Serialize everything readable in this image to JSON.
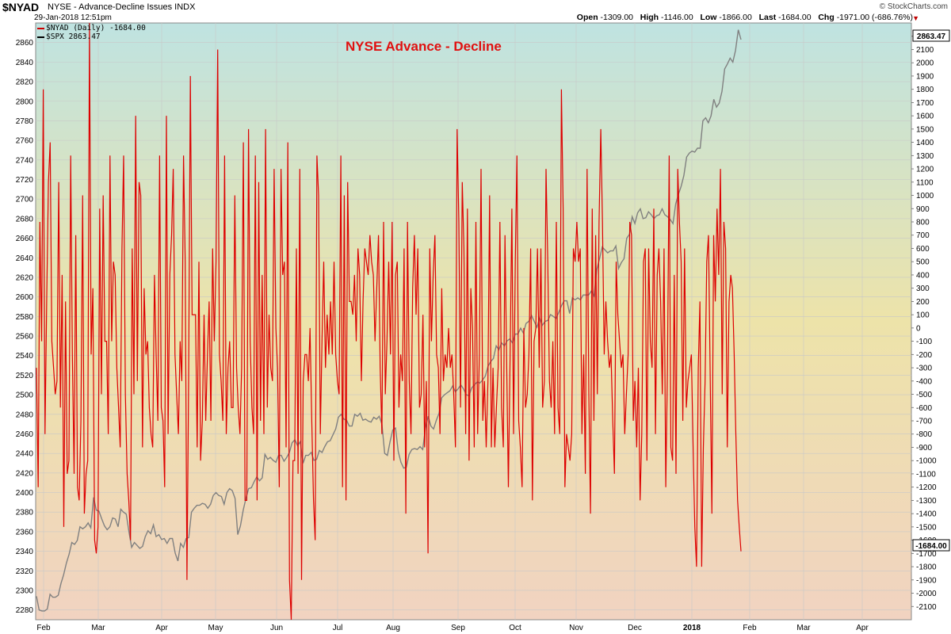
{
  "header": {
    "symbol": "$NYAD",
    "description": "NYSE - Advance-Decline Issues  INDX",
    "datetime": "29-Jan-2018 12:51pm",
    "brand": "© StockCharts.com",
    "open_label": "Open",
    "open_value": "-1309.00",
    "high_label": "High",
    "high_value": "-1146.00",
    "low_label": "Low",
    "low_value": "-1866.00",
    "last_label": "Last",
    "last_value": "-1684.00",
    "chg_label": "Chg",
    "chg_value": "-1971.00 (-686.76%)"
  },
  "legend": [
    {
      "text": "$NYAD (Daily) -1684.00",
      "color": "#cc0000"
    },
    {
      "text": "$SPX 2863.47",
      "color": "#000000"
    }
  ],
  "chart_data": {
    "type": "line",
    "title": "NYSE Advance - Decline",
    "x_tick_labels": [
      "Feb",
      "Mar",
      "Apr",
      "May",
      "Jun",
      "Jul",
      "Aug",
      "Sep",
      "Oct",
      "Nov",
      "Dec",
      "2018",
      "Feb",
      "Mar",
      "Apr"
    ],
    "left_axis": {
      "ylim": [
        2270,
        2880
      ],
      "ticks": [
        2280,
        2300,
        2320,
        2340,
        2360,
        2380,
        2400,
        2420,
        2440,
        2460,
        2480,
        2500,
        2520,
        2540,
        2560,
        2580,
        2600,
        2620,
        2640,
        2660,
        2680,
        2700,
        2720,
        2740,
        2760,
        2780,
        2800,
        2820,
        2840,
        2860
      ]
    },
    "right_axis": {
      "ylim": [
        -2200,
        2300
      ],
      "ticks": [
        -2100,
        -2000,
        -1900,
        -1800,
        -1700,
        -1600,
        -1500,
        -1400,
        -1300,
        -1200,
        -1100,
        -1000,
        -900,
        -800,
        -700,
        -600,
        -500,
        -400,
        -300,
        -200,
        -100,
        0,
        100,
        200,
        300,
        400,
        500,
        600,
        700,
        800,
        900,
        1000,
        1100,
        1200,
        1300,
        1400,
        1500,
        1600,
        1700,
        1800,
        1900,
        2000,
        2100,
        2200
      ]
    },
    "markers": {
      "spx_last": "2863.47",
      "nyad_last": "-1684.00"
    },
    "grid": true,
    "series": [
      {
        "name": "$NYAD (Daily)",
        "axis": "right",
        "color": "#dd0000",
        "values": [
          -300,
          -1200,
          800,
          -100,
          1800,
          -800,
          200,
          1100,
          1400,
          -100,
          -300,
          -500,
          -400,
          1100,
          -600,
          400,
          -1500,
          200,
          -1100,
          -1000,
          1300,
          -200,
          -1100,
          700,
          -1200,
          -1300,
          -700,
          1000,
          -1400,
          -1100,
          -1000,
          2300,
          -200,
          300,
          -1600,
          -1700,
          -1500,
          900,
          -500,
          1000,
          -100,
          -100,
          -800,
          1300,
          -100,
          500,
          400,
          -300,
          -600,
          -900,
          600,
          1300,
          -500,
          -1100,
          -1300,
          -1600,
          600,
          -500,
          1600,
          -400,
          1100,
          1000,
          -900,
          300,
          -200,
          -100,
          -600,
          -800,
          -900,
          400,
          -200,
          -700,
          1300,
          -600,
          -700,
          -1200,
          1600,
          -800,
          400,
          700,
          1200,
          -200,
          -500,
          -800,
          -100,
          -400,
          1300,
          500,
          -1900,
          -400,
          1900,
          100,
          100,
          100,
          -900,
          500,
          -1000,
          -700,
          100,
          -700,
          -200,
          200,
          -700,
          600,
          -100,
          500,
          2100,
          -200,
          -400,
          -700,
          1300,
          -800,
          -300,
          -100,
          -600,
          -600,
          1000,
          -300,
          -600,
          -800,
          -300,
          1400,
          -1300,
          -1300,
          1500,
          -100,
          -600,
          -800,
          1300,
          -1300,
          1100,
          -700,
          400,
          -800,
          1500,
          -600,
          100,
          -300,
          -400,
          1200,
          0,
          -300,
          -1200,
          1200,
          400,
          500,
          -900,
          1400,
          -1900,
          -2200,
          -1000,
          -1000,
          600,
          -1100,
          1200,
          -1900,
          -400,
          -200,
          -200,
          -400,
          0,
          -700,
          -1300,
          -1600,
          1300,
          1000,
          -800,
          -100,
          500,
          -300,
          100,
          -200,
          200,
          -200,
          500,
          -200,
          -400,
          -500,
          1300,
          -1200,
          1000,
          -1300,
          1100,
          200,
          200,
          100,
          400,
          -100,
          600,
          400,
          -400,
          200,
          600,
          500,
          400,
          700,
          500,
          400,
          -100,
          300,
          700,
          -300,
          -800,
          800,
          -500,
          -100,
          500,
          -200,
          800,
          -1000,
          400,
          500,
          -600,
          -200,
          -400,
          600,
          -1400,
          800,
          -400,
          -800,
          300,
          700,
          100,
          600,
          -600,
          -500,
          100,
          -900,
          -400,
          -1700,
          600,
          -100,
          400,
          700,
          -200,
          -300,
          -800,
          300,
          -400,
          -200,
          -300,
          0,
          -300,
          -200,
          -500,
          -900,
          1500,
          800,
          -600,
          1100,
          600,
          -800,
          900,
          -1000,
          300,
          0,
          -900,
          800,
          -800,
          -200,
          1200,
          -700,
          -400,
          -900,
          -400,
          1000,
          -900,
          -300,
          -900,
          -600,
          -300,
          800,
          -600,
          -900,
          700,
          -300,
          -1200,
          -200,
          900,
          -800,
          500,
          1300,
          -700,
          -900,
          -1200,
          0,
          -600,
          -500,
          -200,
          600,
          -1300,
          -100,
          0,
          600,
          -300,
          600,
          -600,
          -400,
          1200,
          500,
          -400,
          -600,
          -100,
          -800,
          800,
          -600,
          -800,
          1800,
          900,
          -1200,
          -800,
          -900,
          -1000,
          -800,
          600,
          500,
          800,
          500,
          600,
          -800,
          -200,
          -1100,
          1200,
          -500,
          -1400,
          900,
          -700,
          700,
          -500,
          800,
          1500,
          800,
          -200,
          200,
          -100,
          -300,
          -200,
          -700,
          -1100,
          500,
          100,
          -100,
          -300,
          -200,
          -800,
          -500,
          -200,
          800,
          700,
          -700,
          -400,
          -900,
          -300,
          -1300,
          -800,
          500,
          600,
          -1000,
          600,
          -100,
          -300,
          900,
          -800,
          400,
          600,
          200,
          -500,
          600,
          -1200,
          -300,
          1300,
          -900,
          -1000,
          400,
          -1100,
          1200,
          800,
          500,
          -700,
          600,
          -600,
          -400,
          -300,
          -200,
          -900,
          -1500,
          -1800,
          -300,
          200,
          -1800,
          -900,
          -400,
          500,
          700,
          -400,
          -1400,
          700,
          200,
          900,
          400,
          1200,
          -500,
          800,
          600,
          -900,
          200,
          400,
          300,
          -200,
          -800,
          -1300,
          -1500,
          -1684
        ]
      },
      {
        "name": "$SPX",
        "axis": "left",
        "color": "#808080",
        "values": [
          2294,
          2280,
          2279,
          2279,
          2281,
          2296,
          2293,
          2293,
          2295,
          2307,
          2316,
          2328,
          2337,
          2349,
          2347,
          2351,
          2365,
          2363,
          2365,
          2369,
          2364,
          2395,
          2382,
          2381,
          2373,
          2366,
          2362,
          2365,
          2374,
          2373,
          2365,
          2383,
          2380,
          2378,
          2360,
          2344,
          2349,
          2346,
          2343,
          2345,
          2355,
          2361,
          2358,
          2367,
          2355,
          2357,
          2352,
          2353,
          2348,
          2353,
          2353,
          2338,
          2330,
          2348,
          2344,
          2353,
          2354,
          2380,
          2384,
          2387,
          2387,
          2389,
          2388,
          2384,
          2388,
          2397,
          2400,
          2397,
          2396,
          2388,
          2400,
          2404,
          2402,
          2394,
          2357,
          2366,
          2382,
          2394,
          2404,
          2405,
          2411,
          2416,
          2412,
          2415,
          2439,
          2434,
          2436,
          2433,
          2431,
          2438,
          2438,
          2432,
          2436,
          2441,
          2451,
          2454,
          2448,
          2452,
          2430,
          2438,
          2438,
          2441,
          2433,
          2434,
          2443,
          2441,
          2447,
          2452,
          2453,
          2459,
          2465,
          2477,
          2480,
          2475,
          2474,
          2468,
          2468,
          2480,
          2478,
          2481,
          2474,
          2475,
          2473,
          2472,
          2477,
          2475,
          2478,
          2470,
          2440,
          2438,
          2452,
          2464,
          2466,
          2442,
          2431,
          2425,
          2426,
          2439,
          2444,
          2445,
          2444,
          2447,
          2444,
          2466,
          2478,
          2468,
          2465,
          2474,
          2481,
          2497,
          2500,
          2502,
          2504,
          2509,
          2503,
          2506,
          2510,
          2506,
          2500,
          2499,
          2507,
          2510,
          2513,
          2512,
          2515,
          2519,
          2529,
          2534,
          2537,
          2550,
          2546,
          2553,
          2550,
          2555,
          2557,
          2553,
          2562,
          2562,
          2568,
          2563,
          2573,
          2575,
          2581,
          2575,
          2569,
          2579,
          2571,
          2575,
          2576,
          2582,
          2580,
          2578,
          2584,
          2591,
          2596,
          2596,
          2583,
          2599,
          2597,
          2599,
          2597,
          2602,
          2602,
          2602,
          2606,
          2601,
          2628,
          2639,
          2651,
          2648,
          2645,
          2647,
          2647,
          2652,
          2629,
          2635,
          2639,
          2660,
          2664,
          2682,
          2675,
          2686,
          2690,
          2680,
          2681,
          2687,
          2684,
          2680,
          2683,
          2684,
          2690,
          2684,
          2682,
          2679,
          2675,
          2695,
          2705,
          2713,
          2724,
          2743,
          2747,
          2749,
          2748,
          2752,
          2752,
          2780,
          2783,
          2778,
          2785,
          2802,
          2794,
          2798,
          2810,
          2833,
          2838,
          2844,
          2840,
          2852,
          2873,
          2863
        ]
      }
    ]
  }
}
